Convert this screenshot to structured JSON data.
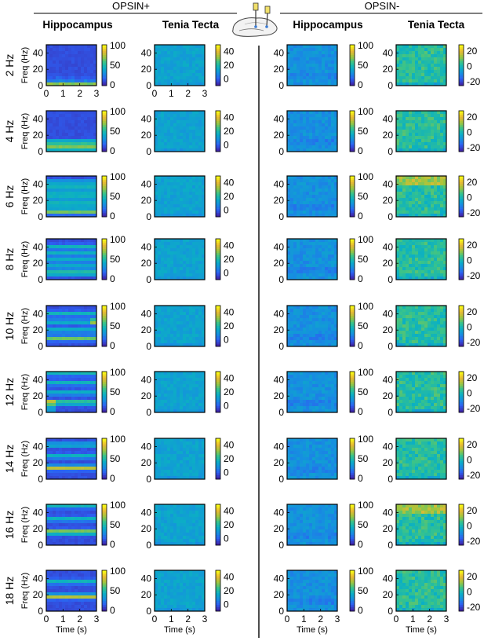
{
  "groups": [
    {
      "label": "OPSIN+",
      "columns": [
        "Hippocampus",
        "Tenia Tecta"
      ]
    },
    {
      "label": "OPSIN-",
      "columns": [
        "Hippocampus",
        "Tenia Tecta"
      ]
    }
  ],
  "rows": [
    "2 Hz",
    "4 Hz",
    "6 Hz",
    "8 Hz",
    "10 Hz",
    "12 Hz",
    "14 Hz",
    "16 Hz",
    "18 Hz"
  ],
  "ylabel": "Freq (Hz)",
  "xlabel": "Time (s)",
  "x_ticks": [
    "0",
    "1",
    "2",
    "3"
  ],
  "y_ticks": [
    "0",
    "20",
    "40"
  ],
  "colorbars": [
    {
      "column": "OPSIN+ Hippocampus",
      "ticks": [
        "0",
        "50",
        "100"
      ],
      "range": [
        0,
        100
      ]
    },
    {
      "column": "OPSIN+ Tenia Tecta",
      "ticks": [
        "0",
        "20",
        "40"
      ],
      "range": [
        -10,
        50
      ]
    },
    {
      "column": "OPSIN- Hippocampus",
      "ticks": [
        "0",
        "50",
        "100"
      ],
      "range": [
        0,
        100
      ]
    },
    {
      "column": "OPSIN- Tenia Tecta",
      "ticks": [
        "-20",
        "0",
        "20"
      ],
      "range": [
        -25,
        28
      ]
    }
  ],
  "colormap": [
    "#3e26a8",
    "#2d5ff2",
    "#168fe0",
    "#0bb0c3",
    "#37c38c",
    "#a2c53b",
    "#e9b935",
    "#f9fb14"
  ],
  "chart_data": {
    "type": "heatmap",
    "x_range_s": [
      0,
      3
    ],
    "y_range_hz": [
      0,
      50
    ],
    "stim_frequencies_hz": [
      2,
      4,
      6,
      8,
      10,
      12,
      14,
      16,
      18
    ],
    "opsin_plus_hippocampus_band_peaks": [
      {
        "row": "2 Hz",
        "bands_hz": [
          2
        ]
      },
      {
        "row": "4 Hz",
        "bands_hz": [
          4,
          8,
          12
        ]
      },
      {
        "row": "6 Hz",
        "bands_hz": [
          6,
          12,
          18,
          24,
          30,
          36,
          42
        ]
      },
      {
        "row": "8 Hz",
        "bands_hz": [
          8,
          16,
          24,
          32,
          40
        ]
      },
      {
        "row": "10 Hz",
        "bands_hz": [
          10,
          20,
          30,
          40
        ]
      },
      {
        "row": "12 Hz",
        "bands_hz": [
          12,
          24,
          36,
          48
        ]
      },
      {
        "row": "14 Hz",
        "bands_hz": [
          14,
          28,
          42
        ]
      },
      {
        "row": "16 Hz",
        "bands_hz": [
          16,
          32,
          48
        ]
      },
      {
        "row": "18 Hz",
        "bands_hz": [
          18,
          36
        ]
      }
    ]
  }
}
